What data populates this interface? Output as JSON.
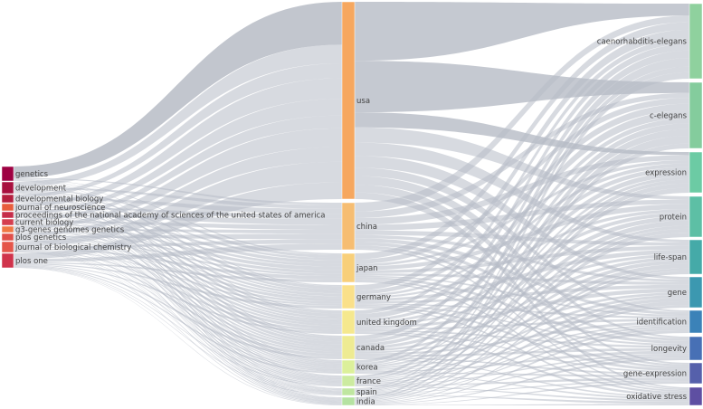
{
  "sources": [
    {
      "label": "genetics",
      "color": "#9e0142"
    },
    {
      "label": "development",
      "color": "#a8103f"
    },
    {
      "label": "developmental biology",
      "color": "#b41f3f"
    },
    {
      "label": "journal of neuroscience",
      "color": "#e85d3c"
    },
    {
      "label": "proceedings of the national academy of sciences of the united states of america",
      "color": "#c52d4a"
    },
    {
      "label": "current biology",
      "color": "#d53e4f"
    },
    {
      "label": "g3-genes genomes genetics",
      "color": "#f07844"
    },
    {
      "label": "plos genetics",
      "color": "#e0504a"
    },
    {
      "label": "journal of biological chemistry",
      "color": "#e4564a"
    },
    {
      "label": "plos one",
      "color": "#d0334b"
    }
  ],
  "countries": [
    {
      "label": "usa",
      "color": "#f6a75f"
    },
    {
      "label": "china",
      "color": "#f6bd72"
    },
    {
      "label": "japan",
      "color": "#f8cf7a"
    },
    {
      "label": "germany",
      "color": "#fae08a"
    },
    {
      "label": "united kingdom",
      "color": "#f5e88e"
    },
    {
      "label": "canada",
      "color": "#eeeb92"
    },
    {
      "label": "korea",
      "color": "#dcf09a"
    },
    {
      "label": "france",
      "color": "#ccebA0"
    },
    {
      "label": "spain",
      "color": "#bfe6a0"
    },
    {
      "label": "india",
      "color": "#b5e2a2"
    }
  ],
  "keywords": [
    {
      "label": "caenorhabditis-elegans",
      "color": "#8fd19e"
    },
    {
      "label": "c-elegans",
      "color": "#84cc9d"
    },
    {
      "label": "expression",
      "color": "#6ccba4"
    },
    {
      "label": "protein",
      "color": "#5dbfa5"
    },
    {
      "label": "life-span",
      "color": "#45aaa8"
    },
    {
      "label": "gene",
      "color": "#3c98b0"
    },
    {
      "label": "identification",
      "color": "#3b82b8"
    },
    {
      "label": "longevity",
      "color": "#4770b5"
    },
    {
      "label": "gene-expression",
      "color": "#5560ab"
    },
    {
      "label": "oxidative stress",
      "color": "#5e4fa2"
    }
  ],
  "link_color": "#b7bcc6"
}
